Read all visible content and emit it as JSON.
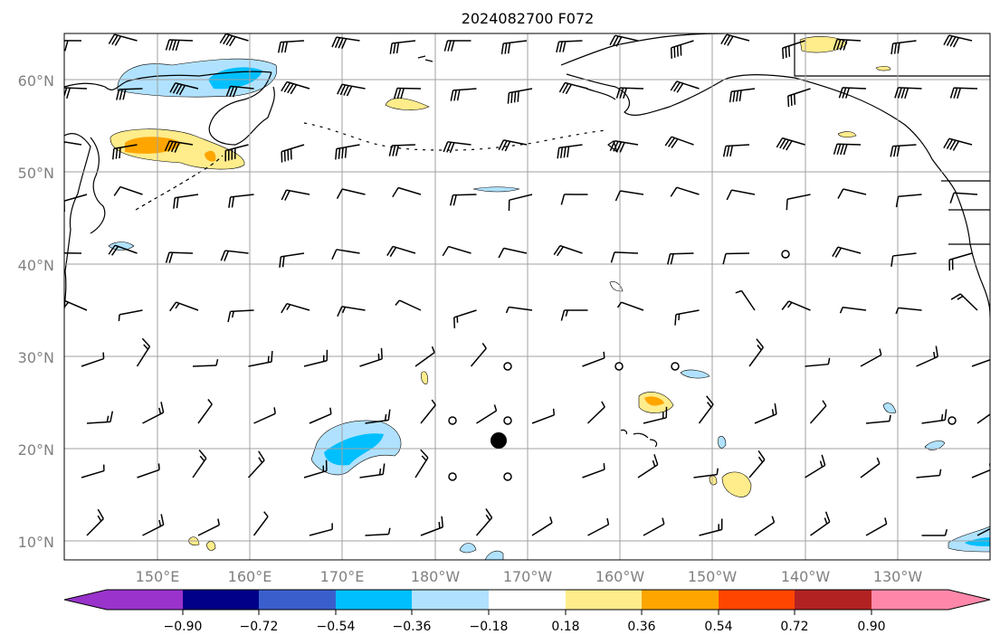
{
  "title": "2024082700 F072",
  "map": {
    "lat_labels": [
      "60°N",
      "50°N",
      "40°N",
      "30°N",
      "20°N",
      "10°N"
    ],
    "lon_labels": [
      "150°E",
      "160°E",
      "170°E",
      "180°W",
      "170°W",
      "160°W",
      "150°W",
      "140°W",
      "130°W"
    ],
    "projection": "PlateCarree",
    "extent_lon": [
      140,
      240
    ],
    "extent_lat": [
      8,
      65
    ],
    "tropical_cyclone_marker": {
      "lon": 187.5,
      "lat": 21
    }
  },
  "colorbar": {
    "colors": [
      "#9933cc",
      "#000088",
      "#3a5fcd",
      "#00bfff",
      "#b0e2ff",
      "#ffffff",
      "#ffec8b",
      "#ffa500",
      "#ff4500",
      "#b22222",
      "#ff88aa"
    ],
    "tick_labels": [
      "−0.90",
      "−0.72",
      "−0.54",
      "−0.36",
      "−0.18",
      "0.18",
      "0.36",
      "0.54",
      "0.72",
      "0.90"
    ]
  },
  "colors": {
    "blue_light": "#b0e2ff",
    "blue": "#00bfff",
    "yellow": "#ffec8b",
    "orange": "#ffa500"
  }
}
